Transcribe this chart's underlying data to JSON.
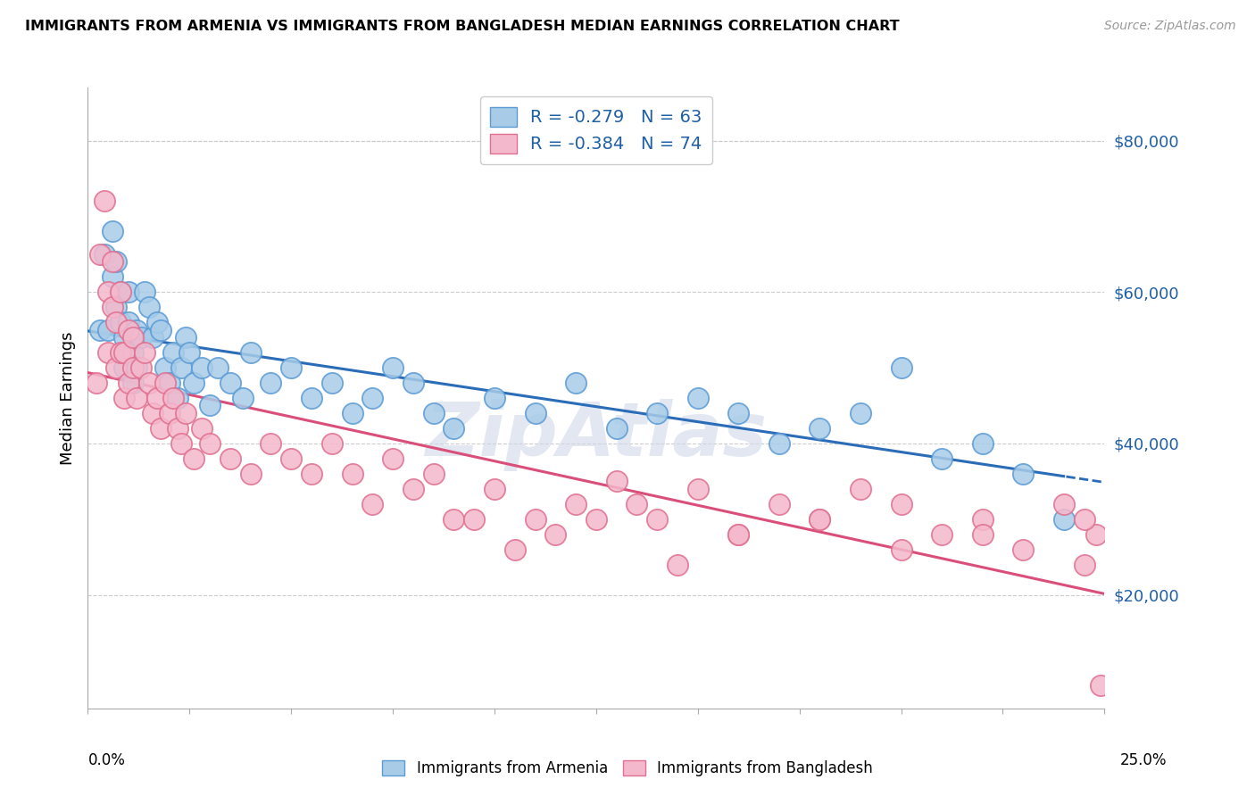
{
  "title": "IMMIGRANTS FROM ARMENIA VS IMMIGRANTS FROM BANGLADESH MEDIAN EARNINGS CORRELATION CHART",
  "source": "Source: ZipAtlas.com",
  "ylabel": "Median Earnings",
  "xlim": [
    0.0,
    25.0
  ],
  "ylim": [
    5000,
    87000
  ],
  "yticks": [
    20000,
    40000,
    60000,
    80000
  ],
  "ytick_labels": [
    "$20,000",
    "$40,000",
    "$60,000",
    "$80,000"
  ],
  "legend_r1": "-0.279",
  "legend_n1": "63",
  "legend_r2": "-0.384",
  "legend_n2": "74",
  "color_armenia_fill": "#a8cce8",
  "color_armenia_edge": "#5b9bd5",
  "color_bangladesh_fill": "#f4b8cc",
  "color_bangladesh_edge": "#e07090",
  "color_armenia_line": "#2b6cb8",
  "color_bangladesh_line": "#d94f7a",
  "color_text_blue": "#1f5fa6",
  "watermark": "ZipAtlas",
  "background_color": "#ffffff",
  "grid_color": "#cccccc",
  "armenia_x": [
    0.3,
    0.4,
    0.5,
    0.6,
    0.6,
    0.7,
    0.7,
    0.8,
    0.8,
    0.9,
    0.9,
    1.0,
    1.0,
    1.0,
    1.1,
    1.1,
    1.2,
    1.2,
    1.3,
    1.4,
    1.5,
    1.6,
    1.7,
    1.8,
    1.9,
    2.0,
    2.1,
    2.2,
    2.3,
    2.4,
    2.5,
    2.6,
    2.8,
    3.0,
    3.2,
    3.5,
    3.8,
    4.0,
    4.5,
    5.0,
    5.5,
    6.0,
    6.5,
    7.0,
    7.5,
    8.0,
    8.5,
    9.0,
    10.0,
    11.0,
    12.0,
    13.0,
    14.0,
    15.0,
    16.0,
    17.0,
    18.0,
    19.0,
    20.0,
    21.0,
    22.0,
    23.0,
    24.0
  ],
  "armenia_y": [
    55000,
    65000,
    55000,
    62000,
    68000,
    58000,
    64000,
    56000,
    60000,
    50000,
    54000,
    52000,
    56000,
    60000,
    48000,
    52000,
    55000,
    50000,
    54000,
    60000,
    58000,
    54000,
    56000,
    55000,
    50000,
    48000,
    52000,
    46000,
    50000,
    54000,
    52000,
    48000,
    50000,
    45000,
    50000,
    48000,
    46000,
    52000,
    48000,
    50000,
    46000,
    48000,
    44000,
    46000,
    50000,
    48000,
    44000,
    42000,
    46000,
    44000,
    48000,
    42000,
    44000,
    46000,
    44000,
    40000,
    42000,
    44000,
    50000,
    38000,
    40000,
    36000,
    30000
  ],
  "bangladesh_x": [
    0.2,
    0.3,
    0.4,
    0.5,
    0.5,
    0.6,
    0.6,
    0.7,
    0.7,
    0.8,
    0.8,
    0.9,
    0.9,
    1.0,
    1.0,
    1.1,
    1.1,
    1.2,
    1.3,
    1.4,
    1.5,
    1.6,
    1.7,
    1.8,
    1.9,
    2.0,
    2.1,
    2.2,
    2.3,
    2.4,
    2.6,
    2.8,
    3.0,
    3.5,
    4.0,
    4.5,
    5.0,
    5.5,
    6.0,
    6.5,
    7.0,
    7.5,
    8.0,
    8.5,
    9.0,
    10.0,
    11.0,
    12.0,
    13.0,
    14.0,
    15.0,
    16.0,
    17.0,
    18.0,
    19.0,
    20.0,
    21.0,
    22.0,
    23.0,
    24.0,
    24.5,
    24.8,
    24.9,
    24.5,
    22.0,
    20.0,
    18.0,
    16.0,
    14.5,
    13.5,
    12.5,
    11.5,
    10.5,
    9.5
  ],
  "bangladesh_y": [
    48000,
    65000,
    72000,
    60000,
    52000,
    58000,
    64000,
    50000,
    56000,
    52000,
    60000,
    46000,
    52000,
    48000,
    55000,
    50000,
    54000,
    46000,
    50000,
    52000,
    48000,
    44000,
    46000,
    42000,
    48000,
    44000,
    46000,
    42000,
    40000,
    44000,
    38000,
    42000,
    40000,
    38000,
    36000,
    40000,
    38000,
    36000,
    40000,
    36000,
    32000,
    38000,
    34000,
    36000,
    30000,
    34000,
    30000,
    32000,
    35000,
    30000,
    34000,
    28000,
    32000,
    30000,
    34000,
    32000,
    28000,
    30000,
    26000,
    32000,
    24000,
    28000,
    8000,
    30000,
    28000,
    26000,
    30000,
    28000,
    24000,
    32000,
    30000,
    28000,
    26000,
    30000
  ]
}
